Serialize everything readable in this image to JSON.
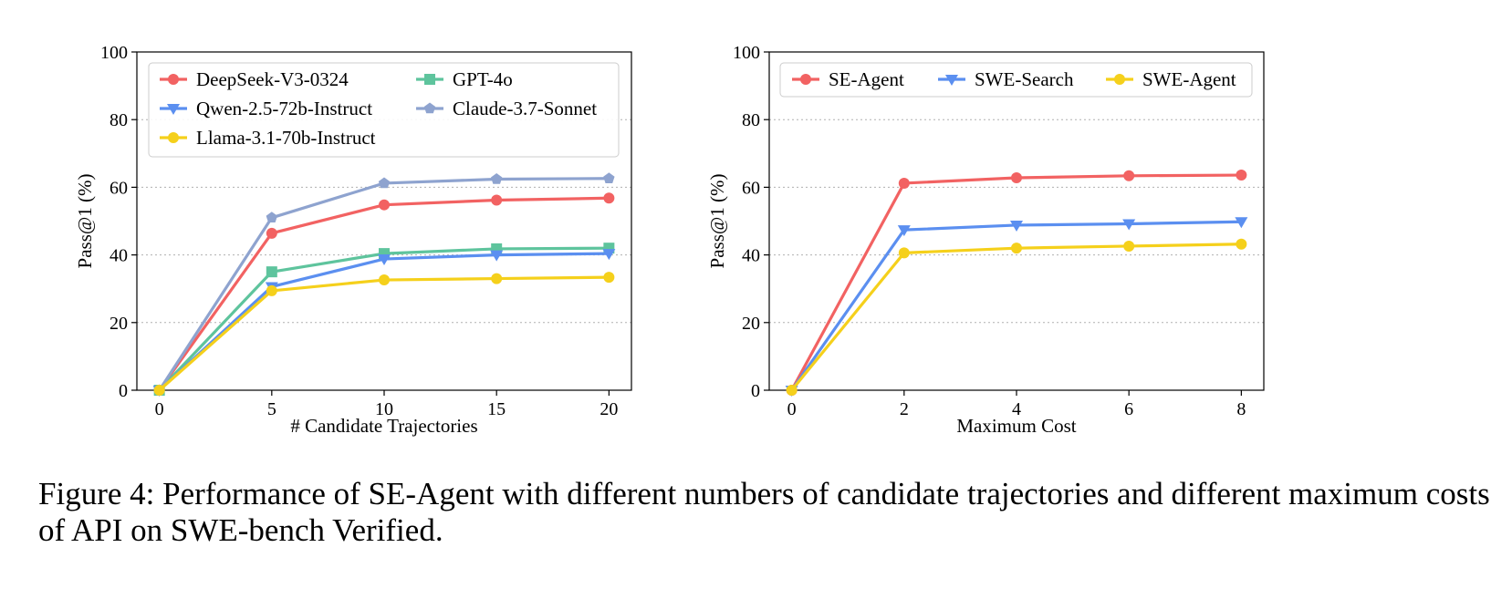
{
  "caption": "Figure 4: Performance of SE-Agent with different numbers of candidate trajectories and different maximum costs of API on SWE-bench Verified.",
  "chart_data": [
    {
      "type": "line",
      "xlabel": "# Candidate Trajectories",
      "ylabel": "Pass@1 (%)",
      "xlim": [
        -1,
        21
      ],
      "ylim": [
        0,
        100
      ],
      "xticks": [
        0,
        5,
        10,
        15,
        20
      ],
      "yticks": [
        0,
        20,
        40,
        60,
        80,
        100
      ],
      "grid": "horizontal dotted",
      "legend_placement": "top-left, 2 columns",
      "x": [
        0,
        5,
        10,
        15,
        20
      ],
      "series": [
        {
          "name": "DeepSeek-V3-0324",
          "color": "#f26262",
          "marker": "circle",
          "values": [
            0,
            46.4,
            54.8,
            56.2,
            56.8
          ]
        },
        {
          "name": "GPT-4o",
          "color": "#5ec49d",
          "marker": "square",
          "values": [
            0,
            35.0,
            40.4,
            41.8,
            42.0
          ]
        },
        {
          "name": "Qwen-2.5-72b-Instruct",
          "color": "#5b8ff0",
          "marker": "triangle-down",
          "values": [
            0,
            30.6,
            38.8,
            40.0,
            40.4
          ]
        },
        {
          "name": "Claude-3.7-Sonnet",
          "color": "#8ea3cf",
          "marker": "pentagon",
          "values": [
            0,
            51.0,
            61.2,
            62.4,
            62.6
          ]
        },
        {
          "name": "Llama-3.1-70b-Instruct",
          "color": "#f5d01b",
          "marker": "circle",
          "values": [
            0,
            29.4,
            32.6,
            33.0,
            33.4
          ]
        }
      ]
    },
    {
      "type": "line",
      "xlabel": "Maximum Cost",
      "ylabel": "Pass@1 (%)",
      "xlim": [
        -0.4,
        8.4
      ],
      "ylim": [
        0,
        100
      ],
      "xticks": [
        0,
        2,
        4,
        6,
        8
      ],
      "yticks": [
        0,
        20,
        40,
        60,
        80,
        100
      ],
      "grid": "horizontal dotted",
      "legend_placement": "top, 1 row",
      "x": [
        0,
        2,
        4,
        6,
        8
      ],
      "series": [
        {
          "name": "SE-Agent",
          "color": "#f26262",
          "marker": "circle",
          "values": [
            0,
            61.2,
            62.8,
            63.4,
            63.6
          ]
        },
        {
          "name": "SWE-Search",
          "color": "#5b8ff0",
          "marker": "triangle-down",
          "values": [
            0,
            47.4,
            48.8,
            49.2,
            49.8
          ]
        },
        {
          "name": "SWE-Agent",
          "color": "#f5d01b",
          "marker": "circle",
          "values": [
            0,
            40.6,
            42.0,
            42.6,
            43.2
          ]
        }
      ]
    }
  ]
}
